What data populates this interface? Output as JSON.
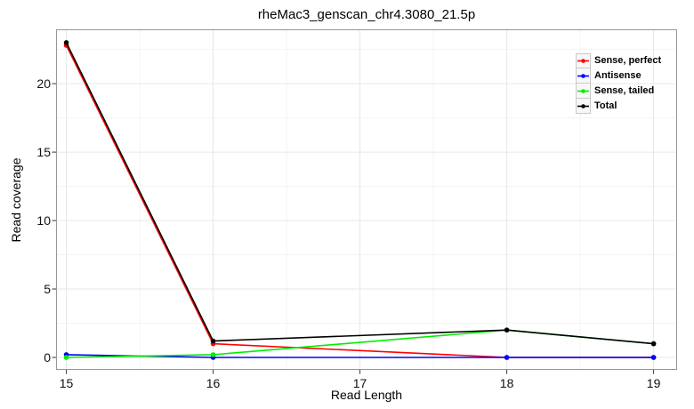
{
  "chart_data": {
    "type": "line",
    "title": "rheMac3_genscan_chr4.3080_21.5p",
    "xlabel": "Read Length",
    "ylabel": "Read coverage",
    "x": [
      15,
      16,
      18,
      19
    ],
    "series": [
      {
        "name": "Sense, perfect",
        "color": "#FF0000",
        "values": [
          22.8,
          1.0,
          0,
          0
        ]
      },
      {
        "name": "Antisense",
        "color": "#0000FF",
        "values": [
          0.2,
          0,
          0,
          0
        ]
      },
      {
        "name": "Sense, tailed",
        "color": "#00EE00",
        "values": [
          0,
          0.2,
          2.0,
          1.0
        ]
      },
      {
        "name": "Total",
        "color": "#000000",
        "values": [
          23.0,
          1.2,
          2.0,
          1.0
        ]
      }
    ],
    "x_ticks": [
      15,
      16,
      17,
      18,
      19
    ],
    "x_tick_labels": [
      "15",
      "16",
      "17",
      "18",
      "19"
    ],
    "y_ticks": [
      0,
      5,
      10,
      15,
      20
    ],
    "y_tick_labels": [
      "0",
      "5",
      "10",
      "15",
      "20"
    ],
    "xlim": [
      14.93,
      19.16
    ],
    "ylim": [
      -0.91,
      23.97
    ],
    "grid": "major+minor",
    "legend_position": "top-right-inside"
  },
  "colors": {
    "background": "#ffffff",
    "panel_border": "#969696",
    "major_grid": "#e7e7e7",
    "minor_grid": "#f3f3f3",
    "tick_mark": "#333333",
    "axis_text": "#111111"
  }
}
